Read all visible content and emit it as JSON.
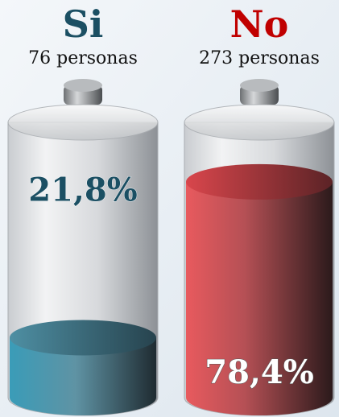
{
  "chart_data": {
    "type": "battery",
    "categories": [
      "Si",
      "No"
    ],
    "subtitles": [
      "76 personas",
      "273 personas"
    ],
    "values": [
      21.8,
      78.4
    ],
    "value_labels": [
      "21,8%",
      "78,4%"
    ],
    "colors": [
      "#1b4f63",
      "#c00000"
    ],
    "ylim": [
      0,
      100
    ]
  }
}
